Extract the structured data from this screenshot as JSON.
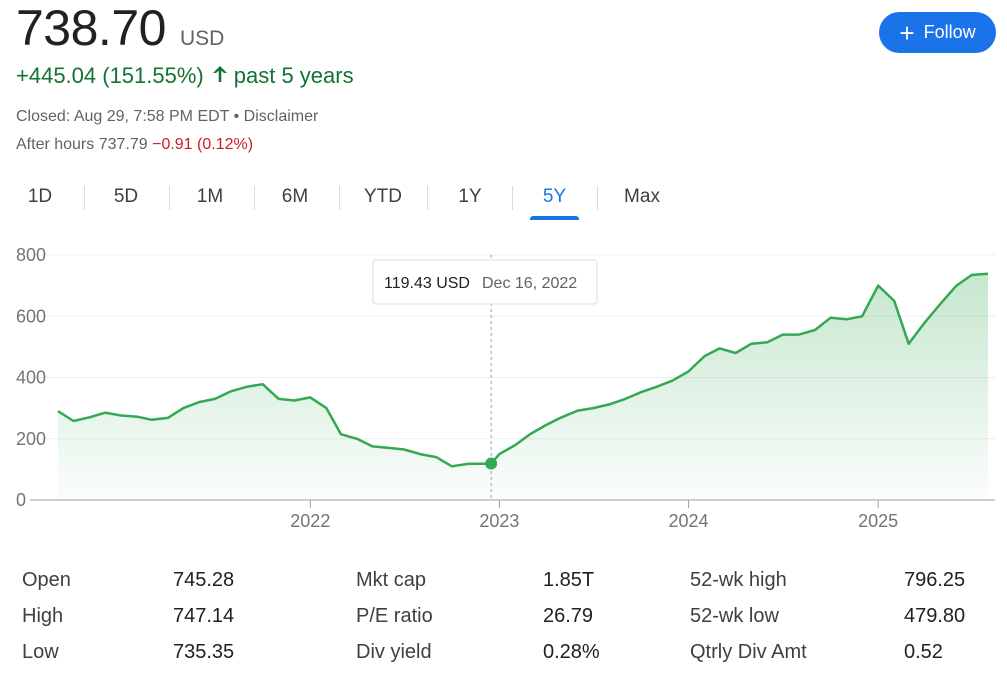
{
  "quote": {
    "price": "738.70",
    "currency": "USD",
    "change_text": "+445.04 (151.55%)",
    "change_period": "past 5 years",
    "closed_text": "Closed: Aug 29, 7:58 PM EDT • Disclaimer",
    "after_hours_label": "After hours 737.79",
    "after_hours_change": "−0.91 (0.12%)",
    "up_color": "#137333",
    "down_color": "#c5221f"
  },
  "follow_button": {
    "label": "Follow",
    "icon": "plus-icon"
  },
  "tabs": [
    {
      "label": "1D",
      "active": false
    },
    {
      "label": "5D",
      "active": false
    },
    {
      "label": "1M",
      "active": false
    },
    {
      "label": "6M",
      "active": false
    },
    {
      "label": "YTD",
      "active": false
    },
    {
      "label": "1Y",
      "active": false
    },
    {
      "label": "5Y",
      "active": true
    },
    {
      "label": "Max",
      "active": false
    }
  ],
  "tooltip": {
    "value": "119.43 USD",
    "date": "Dec 16, 2022"
  },
  "chart_data": {
    "type": "area",
    "title": "",
    "xlabel": "",
    "ylabel": "",
    "ylim": [
      0,
      800
    ],
    "yticks": [
      "0",
      "200",
      "400",
      "600",
      "800"
    ],
    "xticks": [
      "2022",
      "2023",
      "2024",
      "2025"
    ],
    "grid": true,
    "line_color": "#34a853",
    "series": [
      {
        "x": [
          "2020-09",
          "2020-10",
          "2020-11",
          "2020-12",
          "2021-01",
          "2021-02",
          "2021-03",
          "2021-04",
          "2021-05",
          "2021-06",
          "2021-07",
          "2021-08",
          "2021-09",
          "2021-10",
          "2021-11",
          "2021-12",
          "2022-01",
          "2022-02",
          "2022-03",
          "2022-04",
          "2022-05",
          "2022-06",
          "2022-07",
          "2022-08",
          "2022-09",
          "2022-10",
          "2022-11",
          "2022-12-16",
          "2023-01",
          "2023-02",
          "2023-03",
          "2023-04",
          "2023-05",
          "2023-06",
          "2023-07",
          "2023-08",
          "2023-09",
          "2023-10",
          "2023-11",
          "2023-12",
          "2024-01",
          "2024-02",
          "2024-03",
          "2024-04",
          "2024-05",
          "2024-06",
          "2024-07",
          "2024-08",
          "2024-09",
          "2024-10",
          "2024-11",
          "2024-12",
          "2025-01",
          "2025-02",
          "2025-03",
          "2025-04",
          "2025-05",
          "2025-06",
          "2025-07",
          "2025-08"
        ],
        "values": [
          290,
          258,
          270,
          285,
          276,
          272,
          262,
          268,
          300,
          320,
          330,
          355,
          370,
          378,
          330,
          325,
          335,
          300,
          215,
          200,
          175,
          170,
          165,
          150,
          140,
          110,
          118,
          119,
          150,
          180,
          215,
          245,
          270,
          292,
          300,
          312,
          330,
          352,
          370,
          390,
          420,
          470,
          495,
          480,
          510,
          515,
          540,
          540,
          555,
          595,
          590,
          600,
          700,
          650,
          510,
          580,
          640,
          700,
          735,
          738.7
        ]
      }
    ]
  },
  "stats": [
    {
      "label": "Open",
      "value": "745.28"
    },
    {
      "label": "High",
      "value": "747.14"
    },
    {
      "label": "Low",
      "value": "735.35"
    },
    {
      "label": "Mkt cap",
      "value": "1.85T"
    },
    {
      "label": "P/E ratio",
      "value": "26.79"
    },
    {
      "label": "Div yield",
      "value": "0.28%"
    },
    {
      "label": "52-wk high",
      "value": "796.25"
    },
    {
      "label": "52-wk low",
      "value": "479.80"
    },
    {
      "label": "Qtrly Div Amt",
      "value": "0.52"
    }
  ]
}
